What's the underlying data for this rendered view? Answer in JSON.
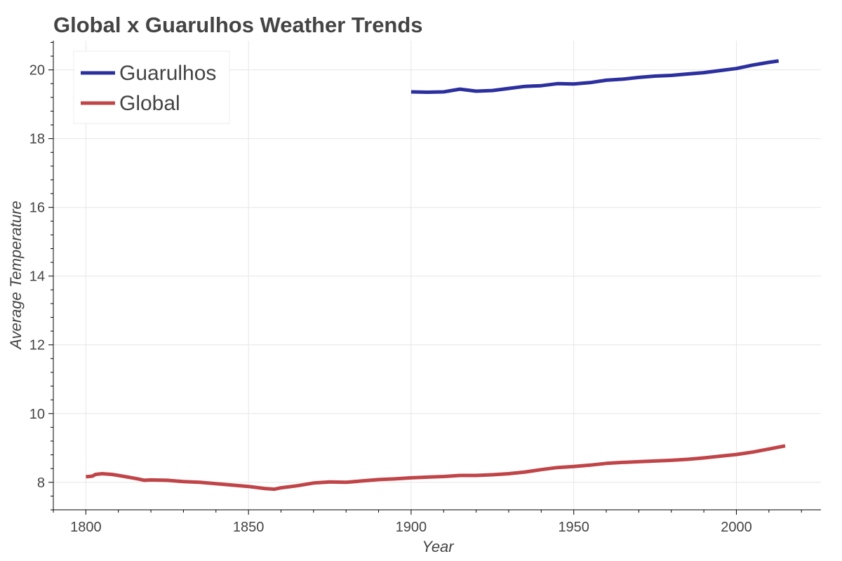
{
  "chart_data": {
    "type": "line",
    "title": "Global x Guarulhos Weather Trends",
    "xlabel": "Year",
    "ylabel": "Average Temperature",
    "xlim": [
      1790,
      2026
    ],
    "ylim": [
      7.2,
      20.85
    ],
    "x_ticks": [
      1800,
      1850,
      1900,
      1950,
      2000
    ],
    "y_ticks": [
      8,
      10,
      12,
      14,
      16,
      18,
      20
    ],
    "grid": true,
    "legend_position": "top-left",
    "series": [
      {
        "name": "Guarulhos",
        "color": "#2c2f9e",
        "points": [
          [
            1900,
            19.36
          ],
          [
            1905,
            19.35
          ],
          [
            1910,
            19.36
          ],
          [
            1915,
            19.44
          ],
          [
            1920,
            19.38
          ],
          [
            1925,
            19.4
          ],
          [
            1930,
            19.46
          ],
          [
            1935,
            19.52
          ],
          [
            1940,
            19.54
          ],
          [
            1945,
            19.6
          ],
          [
            1950,
            19.59
          ],
          [
            1955,
            19.63
          ],
          [
            1960,
            19.7
          ],
          [
            1965,
            19.73
          ],
          [
            1970,
            19.78
          ],
          [
            1975,
            19.82
          ],
          [
            1980,
            19.84
          ],
          [
            1985,
            19.88
          ],
          [
            1990,
            19.92
          ],
          [
            1995,
            19.98
          ],
          [
            2000,
            20.04
          ],
          [
            2005,
            20.14
          ],
          [
            2010,
            20.22
          ],
          [
            2013,
            20.26
          ]
        ]
      },
      {
        "name": "Global",
        "color": "#c04448",
        "points": [
          [
            1800,
            8.16
          ],
          [
            1802,
            8.18
          ],
          [
            1803,
            8.23
          ],
          [
            1805,
            8.25
          ],
          [
            1808,
            8.23
          ],
          [
            1810,
            8.2
          ],
          [
            1813,
            8.15
          ],
          [
            1816,
            8.1
          ],
          [
            1818,
            8.06
          ],
          [
            1820,
            8.07
          ],
          [
            1825,
            8.06
          ],
          [
            1830,
            8.02
          ],
          [
            1835,
            8.0
          ],
          [
            1840,
            7.96
          ],
          [
            1845,
            7.92
          ],
          [
            1850,
            7.88
          ],
          [
            1855,
            7.82
          ],
          [
            1858,
            7.8
          ],
          [
            1860,
            7.84
          ],
          [
            1865,
            7.9
          ],
          [
            1870,
            7.98
          ],
          [
            1875,
            8.01
          ],
          [
            1880,
            8.0
          ],
          [
            1885,
            8.04
          ],
          [
            1890,
            8.08
          ],
          [
            1895,
            8.1
          ],
          [
            1900,
            8.13
          ],
          [
            1905,
            8.15
          ],
          [
            1910,
            8.17
          ],
          [
            1915,
            8.2
          ],
          [
            1920,
            8.2
          ],
          [
            1925,
            8.22
          ],
          [
            1930,
            8.25
          ],
          [
            1935,
            8.3
          ],
          [
            1940,
            8.37
          ],
          [
            1945,
            8.43
          ],
          [
            1950,
            8.46
          ],
          [
            1955,
            8.5
          ],
          [
            1960,
            8.55
          ],
          [
            1965,
            8.58
          ],
          [
            1970,
            8.6
          ],
          [
            1975,
            8.62
          ],
          [
            1980,
            8.64
          ],
          [
            1985,
            8.67
          ],
          [
            1990,
            8.71
          ],
          [
            1995,
            8.76
          ],
          [
            2000,
            8.81
          ],
          [
            2005,
            8.88
          ],
          [
            2010,
            8.97
          ],
          [
            2015,
            9.06
          ]
        ]
      }
    ]
  }
}
